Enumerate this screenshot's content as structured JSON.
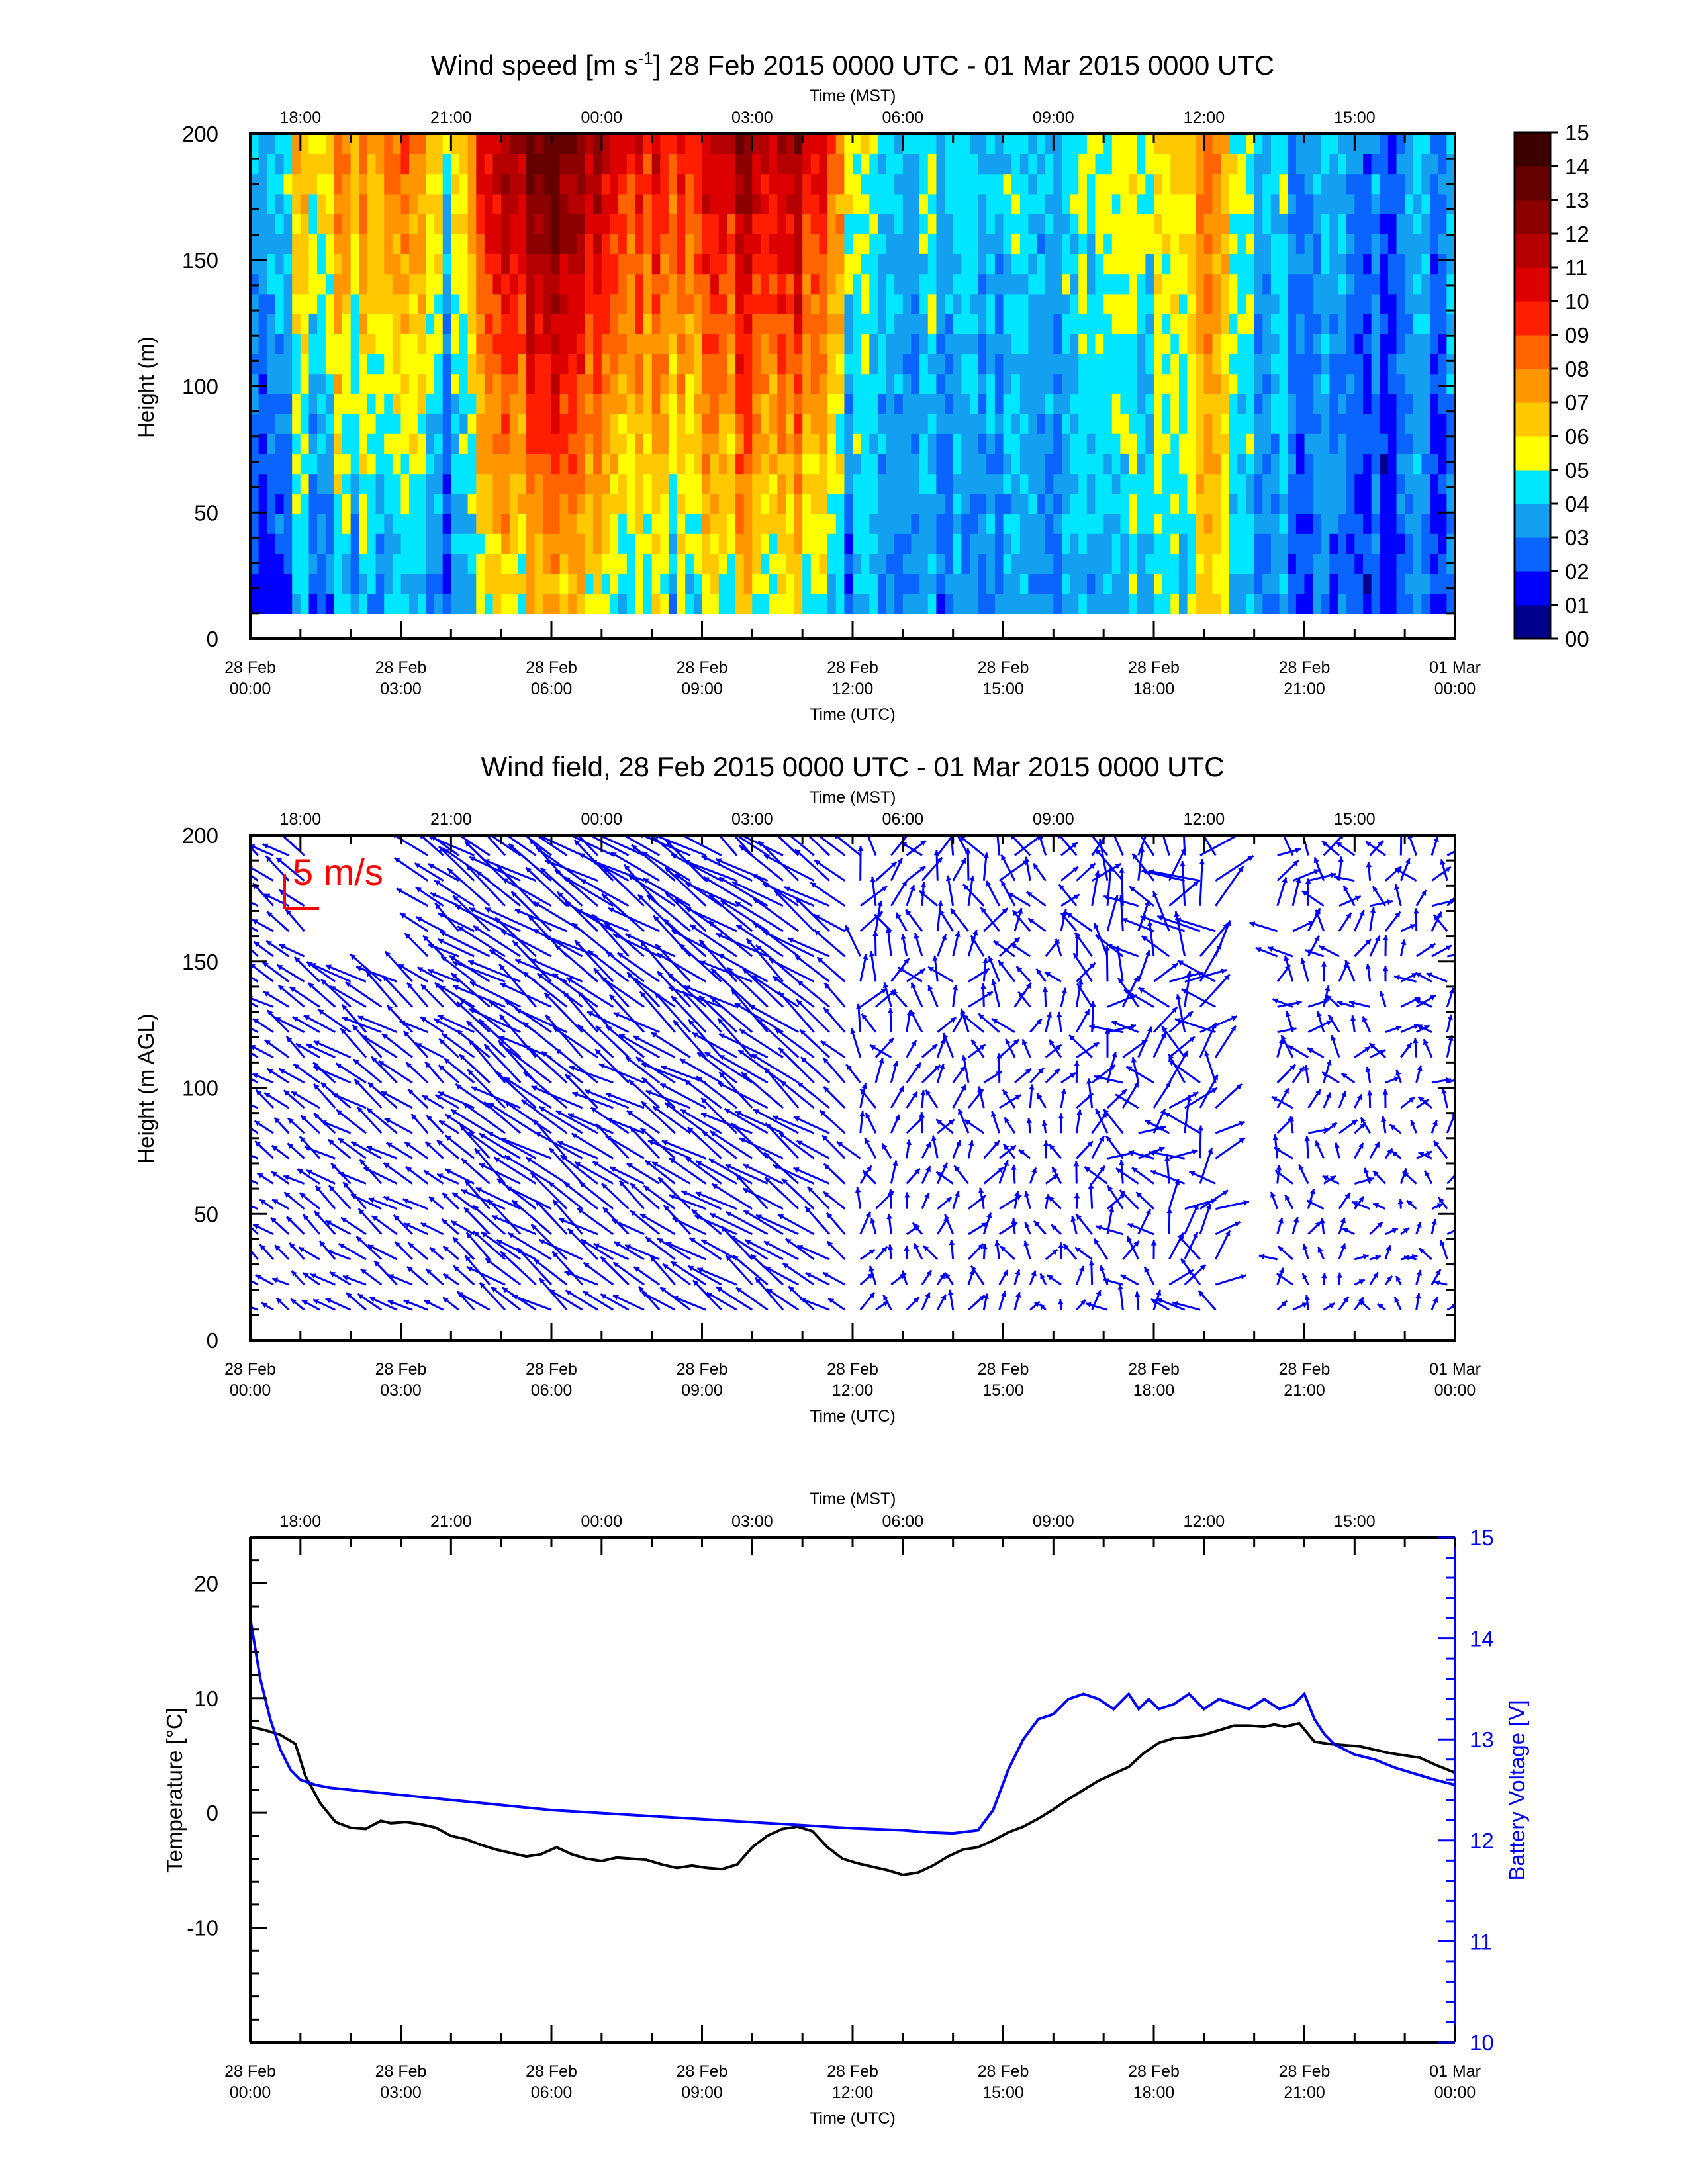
{
  "chart_data": [
    {
      "type": "heatmap",
      "title_main": "Wind speed [m s",
      "title_sup": "-1",
      "title_rest": "] 28 Feb 2015 0000 UTC - 01 Mar 2015 0000 UTC",
      "ylabel": "Height (m)",
      "xlabel_bottom": "Time (UTC)",
      "xlabel_top": "Time (MST)",
      "xlim_hours": [
        0,
        24
      ],
      "ylim": [
        0,
        200
      ],
      "yticks": [
        "0",
        "50",
        "100",
        "150",
        "200"
      ],
      "xticks_bottom": [
        [
          "28 Feb",
          "00:00"
        ],
        [
          "28 Feb",
          "03:00"
        ],
        [
          "28 Feb",
          "06:00"
        ],
        [
          "28 Feb",
          "09:00"
        ],
        [
          "28 Feb",
          "12:00"
        ],
        [
          "28 Feb",
          "15:00"
        ],
        [
          "28 Feb",
          "18:00"
        ],
        [
          "28 Feb",
          "21:00"
        ],
        [
          "01 Mar",
          "00:00"
        ]
      ],
      "xticks_top": [
        "18:00",
        "21:00",
        "00:00",
        "03:00",
        "06:00",
        "09:00",
        "12:00",
        "15:00"
      ],
      "colorbar_labels": [
        "00",
        "01",
        "02",
        "03",
        "04",
        "05",
        "06",
        "07",
        "08",
        "09",
        "10",
        "11",
        "12",
        "13",
        "14",
        "15"
      ],
      "colorbar_colors": [
        "#00008b",
        "#0000ff",
        "#0a64ff",
        "#14a0f0",
        "#00e6ff",
        "#ffff00",
        "#ffc800",
        "#ff9600",
        "#ff6400",
        "#ff1e00",
        "#dc0000",
        "#b40000",
        "#8c0000",
        "#640000",
        "#3c0000"
      ],
      "height_range": [
        10,
        200
      ],
      "time_series_speed": [
        [
          0,
          3.5
        ],
        [
          1,
          4.6
        ],
        [
          2,
          6.2
        ],
        [
          3,
          6.8
        ],
        [
          4,
          4.0
        ],
        [
          5,
          8.8
        ],
        [
          6,
          10.4
        ],
        [
          7,
          8.6
        ],
        [
          8,
          7.6
        ],
        [
          9,
          8.4
        ],
        [
          10,
          9.2
        ],
        [
          11,
          9.2
        ],
        [
          12,
          4.8
        ],
        [
          13,
          3.6
        ],
        [
          14,
          4.0
        ],
        [
          15,
          4.4
        ],
        [
          16,
          2.6
        ],
        [
          17,
          5.4
        ],
        [
          18,
          5.0
        ],
        [
          19,
          7.0
        ],
        [
          20,
          3.8
        ],
        [
          21,
          3.6
        ],
        [
          22,
          3.2
        ],
        [
          23,
          2.8
        ],
        [
          24,
          3.6
        ]
      ]
    },
    {
      "type": "vector",
      "title": "Wind field, 28 Feb 2015 0000 UTC - 01 Mar 2015 0000 UTC",
      "ylabel": "Height (m AGL)",
      "xlabel_bottom": "Time (UTC)",
      "xlabel_top": "Time (MST)",
      "xlim_hours": [
        0,
        24
      ],
      "ylim": [
        0,
        200
      ],
      "yticks": [
        "0",
        "50",
        "100",
        "150",
        "200"
      ],
      "xticks_bottom": [
        [
          "28 Feb",
          "00:00"
        ],
        [
          "28 Feb",
          "03:00"
        ],
        [
          "28 Feb",
          "06:00"
        ],
        [
          "28 Feb",
          "09:00"
        ],
        [
          "28 Feb",
          "12:00"
        ],
        [
          "28 Feb",
          "15:00"
        ],
        [
          "28 Feb",
          "18:00"
        ],
        [
          "28 Feb",
          "21:00"
        ],
        [
          "01 Mar",
          "00:00"
        ]
      ],
      "xticks_top": [
        "18:00",
        "21:00",
        "00:00",
        "03:00",
        "06:00",
        "09:00",
        "12:00",
        "15:00"
      ],
      "reference_vector_label": "5 m/s",
      "reference_vector_ms": 5,
      "vector_color": "#0000ff",
      "reference_color": "#ff0000",
      "data_gaps_hours": [
        [
          1.3,
          3.4
        ],
        [
          19.3,
          20.2
        ]
      ]
    },
    {
      "type": "line",
      "ylabel_left": "Temperature [°C]",
      "ylabel_right": "Battery Voltage [V]",
      "xlabel_bottom": "Time (UTC)",
      "xlabel_top": "Time (MST)",
      "xlim_hours": [
        0,
        24
      ],
      "ylim_left": [
        -20,
        24
      ],
      "ylim_right": [
        10,
        15
      ],
      "yticks_left": [
        "-10",
        "0",
        "10",
        "20"
      ],
      "yticks_right": [
        "10",
        "11",
        "12",
        "13",
        "14",
        "15"
      ],
      "xticks_bottom": [
        [
          "28 Feb",
          "00:00"
        ],
        [
          "28 Feb",
          "03:00"
        ],
        [
          "28 Feb",
          "06:00"
        ],
        [
          "28 Feb",
          "09:00"
        ],
        [
          "28 Feb",
          "12:00"
        ],
        [
          "28 Feb",
          "15:00"
        ],
        [
          "28 Feb",
          "18:00"
        ],
        [
          "28 Feb",
          "21:00"
        ],
        [
          "01 Mar",
          "00:00"
        ]
      ],
      "xticks_top": [
        "18:00",
        "21:00",
        "00:00",
        "03:00",
        "06:00",
        "09:00",
        "12:00",
        "15:00"
      ],
      "series": [
        {
          "axis": "left",
          "color": "#000000",
          "x": [
            0,
            0.3,
            0.6,
            0.9,
            1.1,
            1.4,
            1.7,
            2.0,
            2.3,
            2.6,
            2.8,
            3.1,
            3.4,
            3.7,
            4.0,
            4.3,
            4.6,
            4.9,
            5.2,
            5.5,
            5.8,
            6.1,
            6.4,
            6.7,
            7.0,
            7.3,
            7.6,
            7.9,
            8.2,
            8.5,
            8.8,
            9.1,
            9.4,
            9.7,
            10.0,
            10.3,
            10.6,
            10.9,
            11.2,
            11.5,
            11.8,
            12.1,
            12.4,
            12.7,
            13.0,
            13.3,
            13.6,
            13.9,
            14.2,
            14.5,
            14.8,
            15.1,
            15.4,
            15.7,
            16.0,
            16.3,
            16.6,
            16.9,
            17.2,
            17.5,
            17.8,
            18.1,
            18.4,
            18.7,
            19.0,
            19.3,
            19.6,
            19.9,
            20.2,
            20.4,
            20.6,
            20.9,
            21.2,
            21.5,
            21.8,
            22.1,
            22.4,
            22.7,
            23.0,
            23.3,
            23.6,
            24.0
          ],
          "y": [
            7.5,
            7.2,
            6.8,
            6.0,
            3.2,
            0.8,
            -0.8,
            -1.3,
            -1.4,
            -0.7,
            -0.9,
            -0.8,
            -1.0,
            -1.3,
            -2.0,
            -2.3,
            -2.8,
            -3.2,
            -3.5,
            -3.8,
            -3.6,
            -3.0,
            -3.6,
            -4.0,
            -4.2,
            -3.9,
            -4.0,
            -4.1,
            -4.5,
            -4.8,
            -4.6,
            -4.8,
            -4.9,
            -4.5,
            -3.0,
            -2.0,
            -1.4,
            -1.2,
            -1.6,
            -3.0,
            -4.0,
            -4.4,
            -4.7,
            -5.0,
            -5.4,
            -5.2,
            -4.6,
            -3.8,
            -3.2,
            -3.0,
            -2.4,
            -1.7,
            -1.2,
            -0.5,
            0.3,
            1.2,
            2.0,
            2.8,
            3.4,
            4.0,
            5.2,
            6.1,
            6.5,
            6.6,
            6.8,
            7.2,
            7.6,
            7.6,
            7.5,
            7.7,
            7.5,
            7.8,
            6.2,
            6.0,
            5.9,
            5.8,
            5.5,
            5.2,
            5.0,
            4.8,
            4.2,
            3.5
          ]
        },
        {
          "axis": "right",
          "color": "#0000ff",
          "x": [
            0,
            0.2,
            0.4,
            0.6,
            0.8,
            1.0,
            1.3,
            1.6,
            2.0,
            3.0,
            4.0,
            5.0,
            6.0,
            7.0,
            8.0,
            9.0,
            10.0,
            11.0,
            12.0,
            13.0,
            13.5,
            14.0,
            14.5,
            14.8,
            15.1,
            15.4,
            15.7,
            16.0,
            16.3,
            16.6,
            16.9,
            17.2,
            17.5,
            17.7,
            17.9,
            18.1,
            18.4,
            18.7,
            19.0,
            19.3,
            19.6,
            19.9,
            20.2,
            20.5,
            20.8,
            21.0,
            21.2,
            21.4,
            21.6,
            21.8,
            22.0,
            22.4,
            22.8,
            23.2,
            23.6,
            24.0
          ],
          "y": [
            14.2,
            13.6,
            13.2,
            12.9,
            12.7,
            12.6,
            12.55,
            12.52,
            12.5,
            12.45,
            12.4,
            12.35,
            12.3,
            12.27,
            12.24,
            12.21,
            12.18,
            12.15,
            12.12,
            12.1,
            12.08,
            12.07,
            12.1,
            12.3,
            12.7,
            13.0,
            13.2,
            13.25,
            13.4,
            13.45,
            13.4,
            13.3,
            13.45,
            13.3,
            13.4,
            13.3,
            13.35,
            13.45,
            13.3,
            13.4,
            13.35,
            13.3,
            13.4,
            13.3,
            13.35,
            13.45,
            13.2,
            13.05,
            12.95,
            12.9,
            12.85,
            12.8,
            12.72,
            12.66,
            12.6,
            12.55
          ]
        }
      ]
    }
  ]
}
